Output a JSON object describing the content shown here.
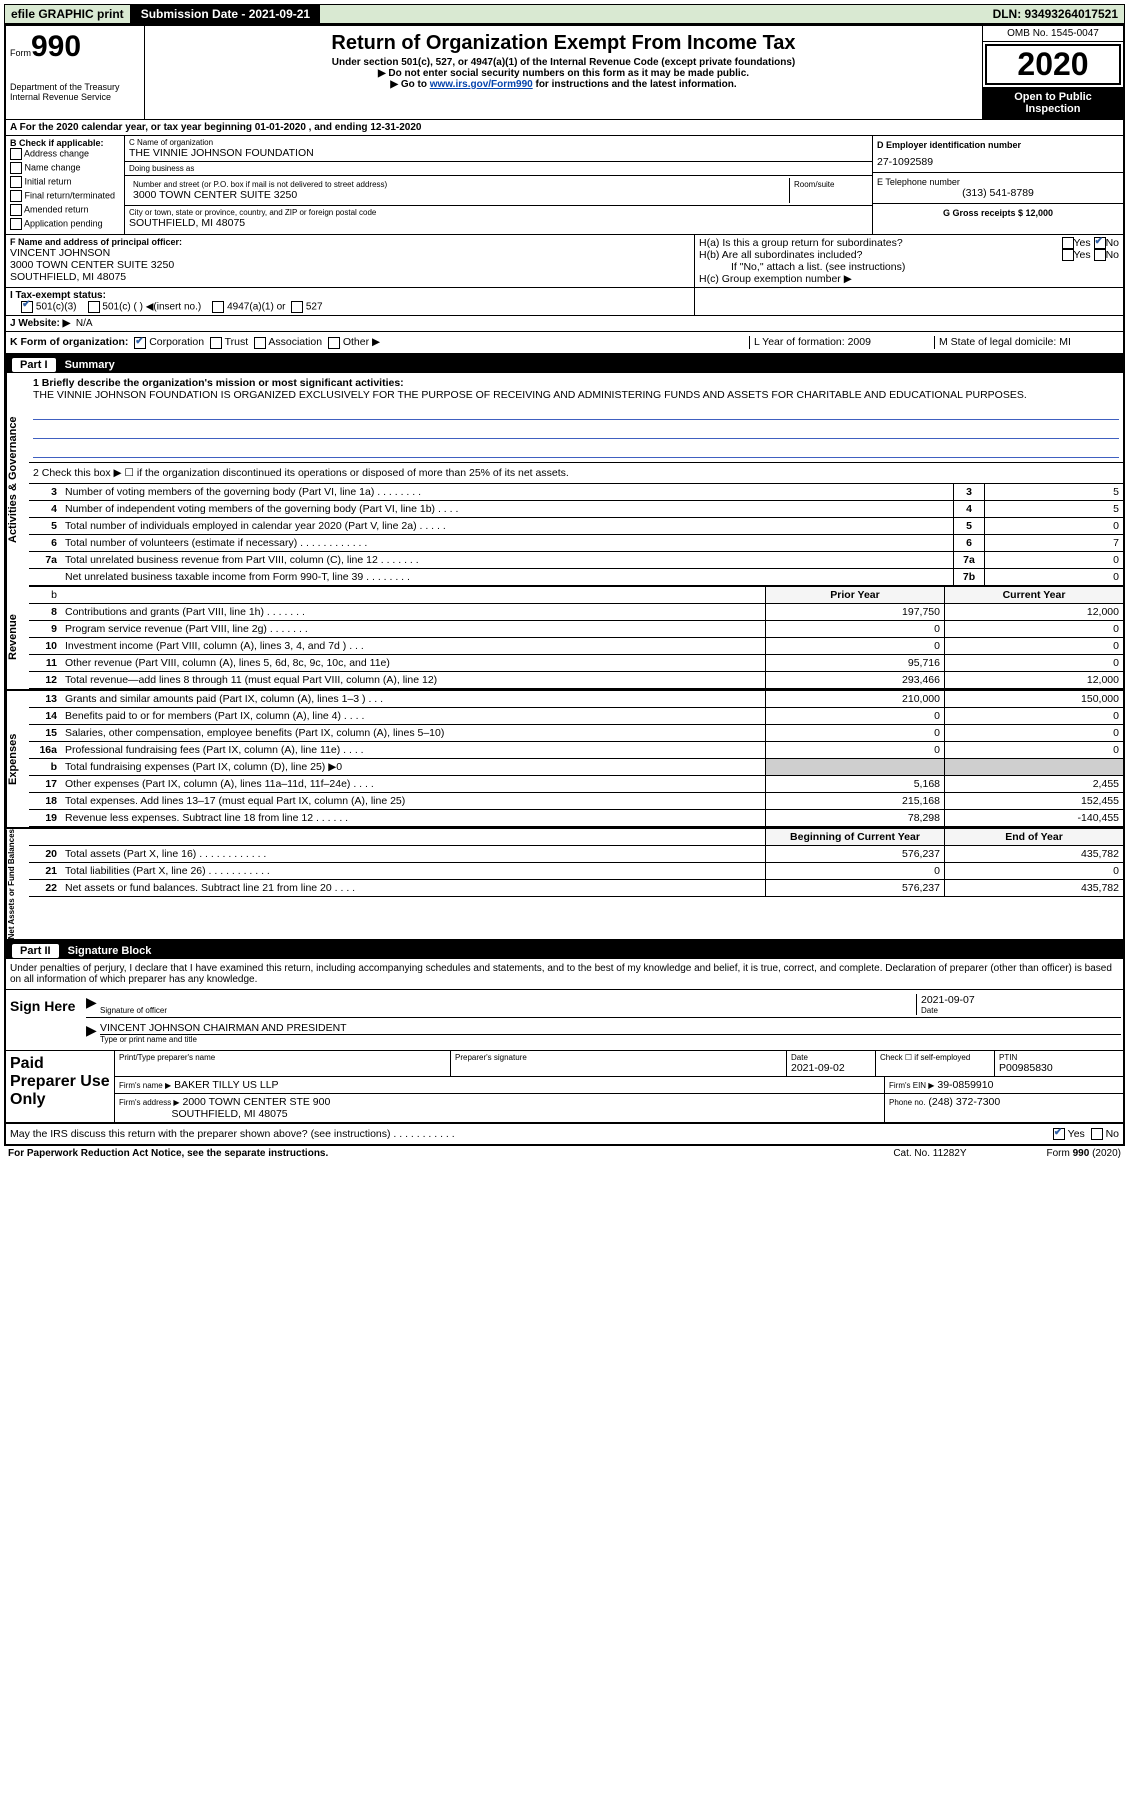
{
  "top": {
    "efile": "efile GRAPHIC print",
    "subdate_label": "Submission Date - 2021-09-21",
    "dln": "DLN: 93493264017521"
  },
  "header": {
    "form_prefix": "Form",
    "form_num": "990",
    "dept": "Department of the Treasury\nInternal Revenue Service",
    "title": "Return of Organization Exempt From Income Tax",
    "sub1": "Under section 501(c), 527, or 4947(a)(1) of the Internal Revenue Code (except private foundations)",
    "sub2": "▶ Do not enter social security numbers on this form as it may be made public.",
    "sub3_pre": "▶ Go to ",
    "sub3_link": "www.irs.gov/Form990",
    "sub3_post": " for instructions and the latest information.",
    "omb": "OMB No. 1545-0047",
    "year": "2020",
    "open": "Open to Public Inspection"
  },
  "A": {
    "text": "A For the 2020 calendar year, or tax year beginning 01-01-2020       , and ending 12-31-2020"
  },
  "B": {
    "label": "B Check if applicable:",
    "opts": [
      "Address change",
      "Name change",
      "Initial return",
      "Final return/terminated",
      "Amended return",
      "Application pending"
    ]
  },
  "C": {
    "name_label": "C Name of organization",
    "name": "THE VINNIE JOHNSON FOUNDATION",
    "dba_label": "Doing business as",
    "dba": "",
    "addr_label": "Number and street (or P.O. box if mail is not delivered to street address)",
    "room_label": "Room/suite",
    "addr": "3000 TOWN CENTER SUITE 3250",
    "city_label": "City or town, state or province, country, and ZIP or foreign postal code",
    "city": "SOUTHFIELD, MI  48075"
  },
  "D": {
    "label": "D Employer identification number",
    "value": "27-1092589"
  },
  "E": {
    "label": "E Telephone number",
    "value": "(313) 541-8789"
  },
  "G": {
    "label": "G Gross receipts $ 12,000"
  },
  "F": {
    "label": "F  Name and address of principal officer:",
    "lines": [
      "VINCENT JOHNSON",
      "3000 TOWN CENTER SUITE 3250",
      "SOUTHFIELD, MI  48075"
    ]
  },
  "H": {
    "a": "H(a)  Is this a group return for subordinates?",
    "a_yes": "Yes",
    "a_no": "No",
    "b": "H(b)  Are all subordinates included?",
    "b_yes": "Yes",
    "b_no": "No",
    "b_note": "If \"No,\" attach a list. (see instructions)",
    "c": "H(c)  Group exemption number ▶"
  },
  "I": {
    "label": "I  Tax-exempt status:",
    "o1": "501(c)(3)",
    "o2": "501(c) (  ) ◀(insert no.)",
    "o3": "4947(a)(1) or",
    "o4": "527"
  },
  "J": {
    "label": "J  Website: ▶",
    "value": "N/A"
  },
  "K": {
    "label": "K Form of organization:",
    "o1": "Corporation",
    "o2": "Trust",
    "o3": "Association",
    "o4": "Other ▶",
    "L": "L Year of formation: 2009",
    "M": "M State of legal domicile: MI"
  },
  "partI": {
    "tag": "Part I",
    "title": "Summary",
    "line1_label": "1  Briefly describe the organization's mission or most significant activities:",
    "line1_text": "THE VINNIE JOHNSON FOUNDATION IS ORGANIZED EXCLUSIVELY FOR THE PURPOSE OF RECEIVING AND ADMINISTERING FUNDS AND ASSETS FOR CHARITABLE AND EDUCATIONAL PURPOSES.",
    "line2": "2  Check this box ▶ ☐  if the organization discontinued its operations or disposed of more than 25% of its net assets.",
    "rows_act": [
      {
        "n": "3",
        "label": "Number of voting members of the governing body (Part VI, line 1a)   .   .   .   .   .   .   .   .",
        "box": "3",
        "val": "5"
      },
      {
        "n": "4",
        "label": "Number of independent voting members of the governing body (Part VI, line 1b)   .   .   .   .",
        "box": "4",
        "val": "5"
      },
      {
        "n": "5",
        "label": "Total number of individuals employed in calendar year 2020 (Part V, line 2a)   .   .   .   .   .",
        "box": "5",
        "val": "0"
      },
      {
        "n": "6",
        "label": "Total number of volunteers (estimate if necessary)   .   .   .   .   .   .   .   .   .   .   .   .",
        "box": "6",
        "val": "7"
      },
      {
        "n": "7a",
        "label": "Total unrelated business revenue from Part VIII, column (C), line 12   .   .   .   .   .   .   .",
        "box": "7a",
        "val": "0"
      },
      {
        "n": "",
        "label": "Net unrelated business taxable income from Form 990-T, line 39   .   .   .   .   .   .   .   .",
        "box": "7b",
        "val": "0"
      }
    ],
    "prev_h": "Prior Year",
    "curr_h": "Current Year",
    "rev": [
      {
        "n": "8",
        "label": "Contributions and grants (Part VIII, line 1h)   .   .   .   .   .   .   .",
        "p": "197,750",
        "c": "12,000"
      },
      {
        "n": "9",
        "label": "Program service revenue (Part VIII, line 2g)   .   .   .   .   .   .   .",
        "p": "0",
        "c": "0"
      },
      {
        "n": "10",
        "label": "Investment income (Part VIII, column (A), lines 3, 4, and 7d )   .   .   .",
        "p": "0",
        "c": "0"
      },
      {
        "n": "11",
        "label": "Other revenue (Part VIII, column (A), lines 5, 6d, 8c, 9c, 10c, and 11e)",
        "p": "95,716",
        "c": "0"
      },
      {
        "n": "12",
        "label": "Total revenue—add lines 8 through 11 (must equal Part VIII, column (A), line 12)",
        "p": "293,466",
        "c": "12,000"
      }
    ],
    "exp": [
      {
        "n": "13",
        "label": "Grants and similar amounts paid (Part IX, column (A), lines 1–3 )   .   .   .",
        "p": "210,000",
        "c": "150,000"
      },
      {
        "n": "14",
        "label": "Benefits paid to or for members (Part IX, column (A), line 4)   .   .   .   .",
        "p": "0",
        "c": "0"
      },
      {
        "n": "15",
        "label": "Salaries, other compensation, employee benefits (Part IX, column (A), lines 5–10)",
        "p": "0",
        "c": "0"
      },
      {
        "n": "16a",
        "label": "Professional fundraising fees (Part IX, column (A), line 11e)   .   .   .   .",
        "p": "0",
        "c": "0"
      },
      {
        "n": "b",
        "label": "Total fundraising expenses (Part IX, column (D), line 25) ▶0",
        "p": "SHADED",
        "c": "SHADED"
      },
      {
        "n": "17",
        "label": "Other expenses (Part IX, column (A), lines 11a–11d, 11f–24e)   .   .   .   .",
        "p": "5,168",
        "c": "2,455"
      },
      {
        "n": "18",
        "label": "Total expenses. Add lines 13–17 (must equal Part IX, column (A), line 25)",
        "p": "215,168",
        "c": "152,455"
      },
      {
        "n": "19",
        "label": "Revenue less expenses. Subtract line 18 from line 12   .   .   .   .   .   .",
        "p": "78,298",
        "c": "-140,455"
      }
    ],
    "beg_h": "Beginning of Current Year",
    "end_h": "End of Year",
    "net": [
      {
        "n": "20",
        "label": "Total assets (Part X, line 16)   .   .   .   .   .   .   .   .   .   .   .   .",
        "p": "576,237",
        "c": "435,782"
      },
      {
        "n": "21",
        "label": "Total liabilities (Part X, line 26)   .   .   .   .   .   .   .   .   .   .   .",
        "p": "0",
        "c": "0"
      },
      {
        "n": "22",
        "label": "Net assets or fund balances. Subtract line 21 from line 20   .   .   .   .",
        "p": "576,237",
        "c": "435,782"
      }
    ],
    "side_act": "Activities & Governance",
    "side_rev": "Revenue",
    "side_exp": "Expenses",
    "side_net": "Net Assets or Fund Balances"
  },
  "partII": {
    "tag": "Part II",
    "title": "Signature Block",
    "intro": "Under penalties of perjury, I declare that I have examined this return, including accompanying schedules and statements, and to the best of my knowledge and belief, it is true, correct, and complete. Declaration of preparer (other than officer) is based on all information of which preparer has any knowledge.",
    "sign_here": "Sign Here",
    "sig_label": "Signature of officer",
    "date_label": "Date",
    "sig_date": "2021-09-07",
    "name_title": "VINCENT JOHNSON  CHAIRMAN AND PRESIDENT",
    "name_title_label": "Type or print name and title"
  },
  "prep": {
    "left": "Paid Preparer Use Only",
    "h1": "Print/Type preparer's name",
    "h2": "Preparer's signature",
    "h3_l": "Date",
    "h3": "2021-09-02",
    "h4_l": "Check ☐  if self-employed",
    "h5_l": "PTIN",
    "h5": "P00985830",
    "firm_l": "Firm's name      ▶",
    "firm": "BAKER TILLY US LLP",
    "ein_l": "Firm's EIN ▶",
    "ein": "39-0859910",
    "addr_l": "Firm's address ▶",
    "addr1": "2000 TOWN CENTER STE 900",
    "addr2": "SOUTHFIELD, MI  48075",
    "phone_l": "Phone no.",
    "phone": "(248) 372-7300"
  },
  "discuss": {
    "q": "May the IRS discuss this return with the preparer shown above? (see instructions)   .   .   .   .   .   .   .   .   .   .   .",
    "yes": "Yes",
    "no": "No"
  },
  "foot": {
    "l": "For Paperwork Reduction Act Notice, see the separate instructions.",
    "m": "Cat. No. 11282Y",
    "r": "Form 990 (2020)"
  }
}
